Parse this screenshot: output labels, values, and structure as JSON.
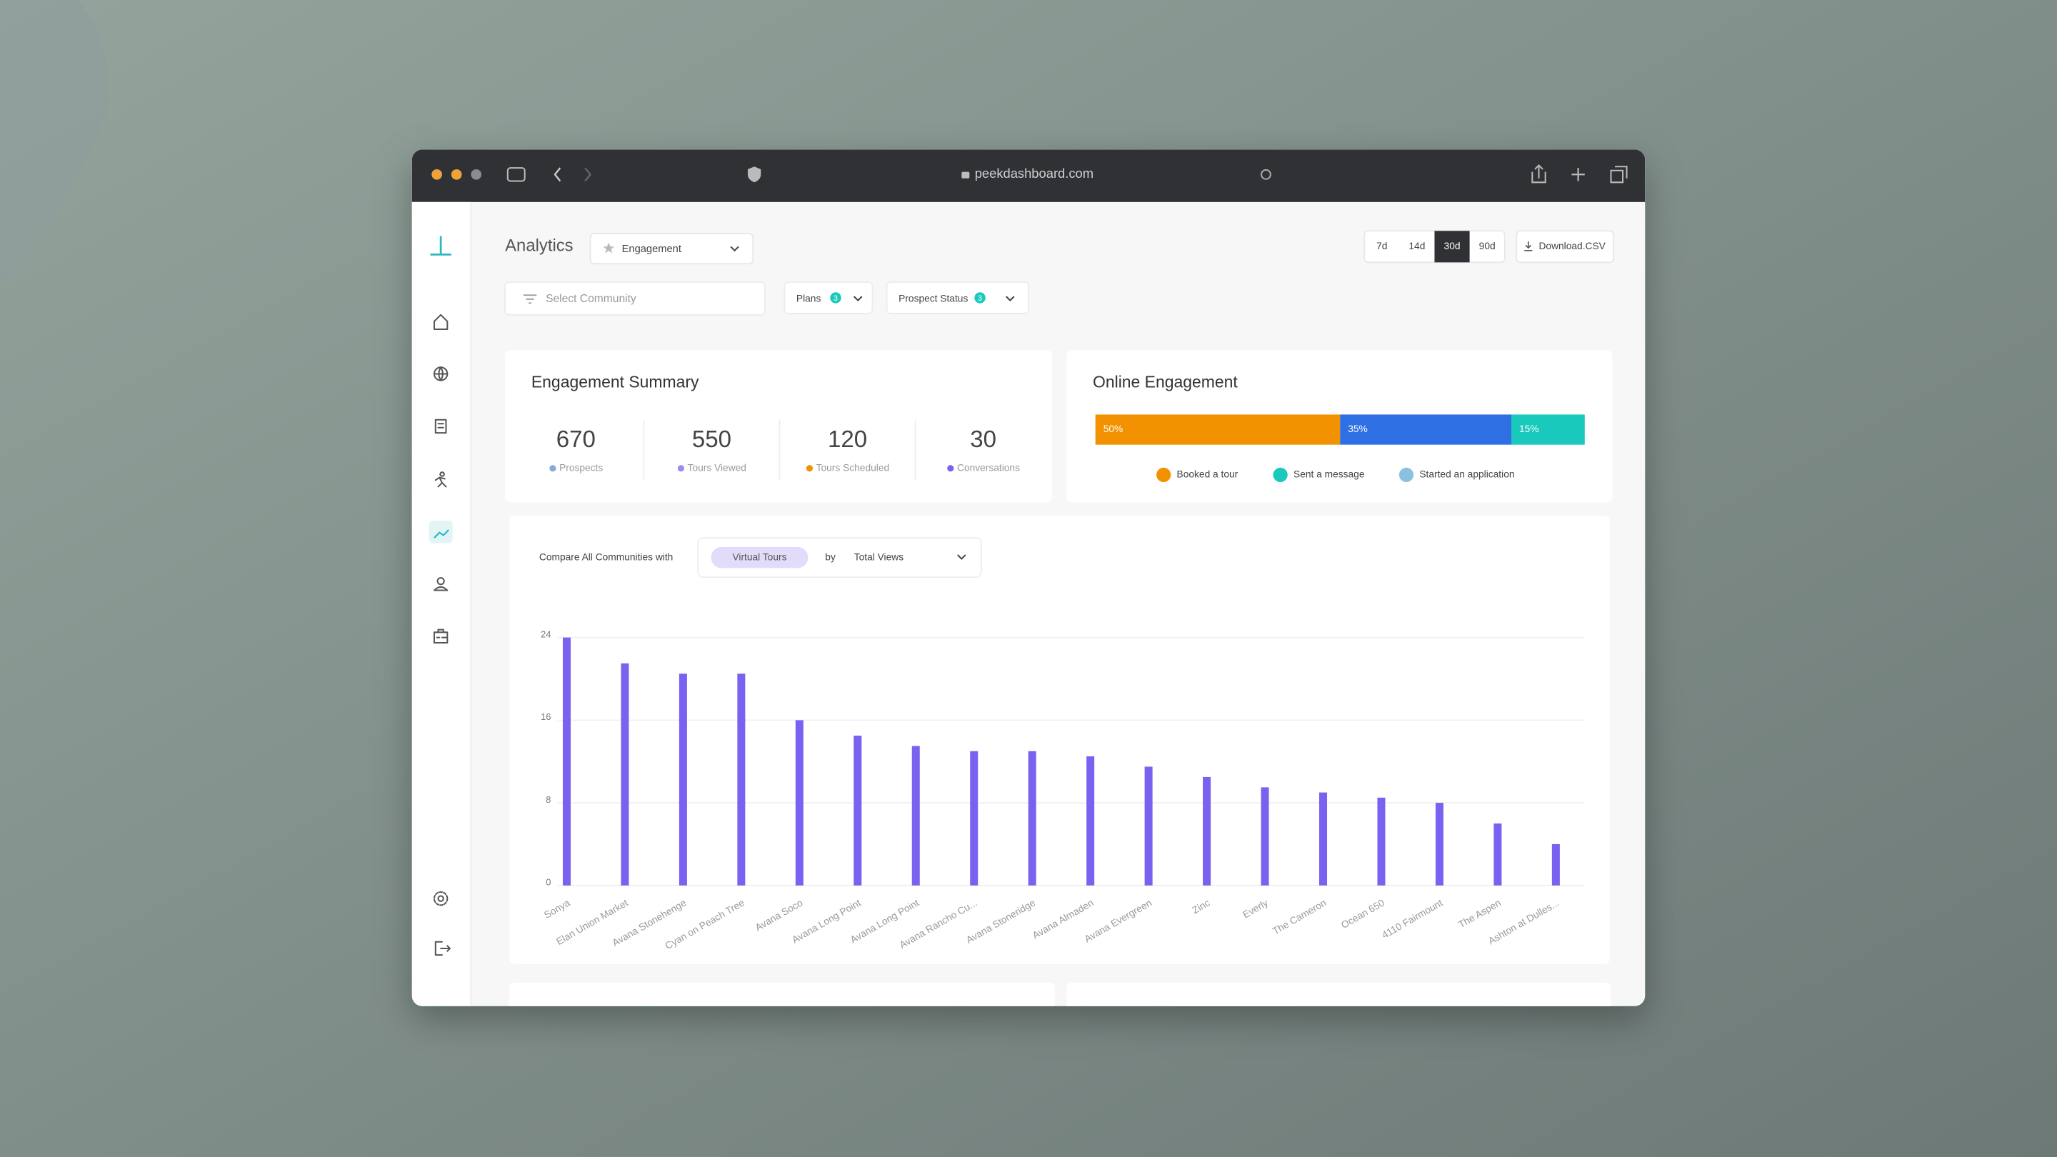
{
  "browser": {
    "url": "peekdashboard.com"
  },
  "header": {
    "title": "Analytics",
    "view": "Engagement",
    "periods": [
      "7d",
      "14d",
      "30d",
      "90d"
    ],
    "active_period": "30d",
    "download": "Download.CSV"
  },
  "filters": {
    "community": "Select Community",
    "plans": {
      "label": "Plans",
      "badge": 3
    },
    "prospect_status": {
      "label": "Prospect Status",
      "badge": 3
    }
  },
  "summary": {
    "title": "Engagement Summary",
    "stats": [
      {
        "value": 670,
        "label": "Prospects"
      },
      {
        "value": 550,
        "label": "Tours Viewed"
      },
      {
        "value": 120,
        "label": "Tours Scheduled"
      },
      {
        "value": 30,
        "label": "Conversations"
      }
    ]
  },
  "online_engagement": {
    "title": "Online Engagement",
    "segments": [
      {
        "value": 50,
        "value_label": "50%",
        "color": "#f39200"
      },
      {
        "value": 35,
        "value_label": "35%",
        "color": "#2f6fe4"
      },
      {
        "value": 15,
        "value_label": "15%",
        "color": "#19c9bb"
      }
    ],
    "legend": [
      {
        "label": "Booked a tour",
        "color": "#f39200"
      },
      {
        "label": "Sent a message",
        "color": "#19c9bb"
      },
      {
        "label": "Started an application",
        "color": "#8cc0e0"
      }
    ]
  },
  "compare": {
    "label": "Compare All Communities with",
    "metric": "Virtual Tours",
    "by": "by",
    "measure": "Total Views"
  },
  "chart_data": {
    "type": "bar",
    "color": "#7b61f0",
    "categories": [
      "Sonya",
      "Elan Union Market",
      "Avana Stonehenge",
      "Cyan on Peach Tree",
      "Avana Soco",
      "Avana Long Point",
      "Avana Long Point",
      "Avana Rancho Cu...",
      "Avana Stoneridge",
      "Avana Almaden",
      "Avana Evergreen",
      "Zinc",
      "Everly",
      "The Cameron",
      "Ocean 650",
      "4110 Fairmount",
      "The Aspen",
      "Ashton at Dulles..."
    ],
    "values": [
      24,
      21.5,
      20.5,
      20.5,
      16,
      14.5,
      13.5,
      13,
      13,
      12.5,
      11.5,
      10.5,
      9.5,
      9,
      8.5,
      8,
      6,
      4
    ],
    "ylim": [
      0,
      24
    ],
    "yticks": [
      0,
      8,
      16,
      24
    ],
    "grid": true
  }
}
